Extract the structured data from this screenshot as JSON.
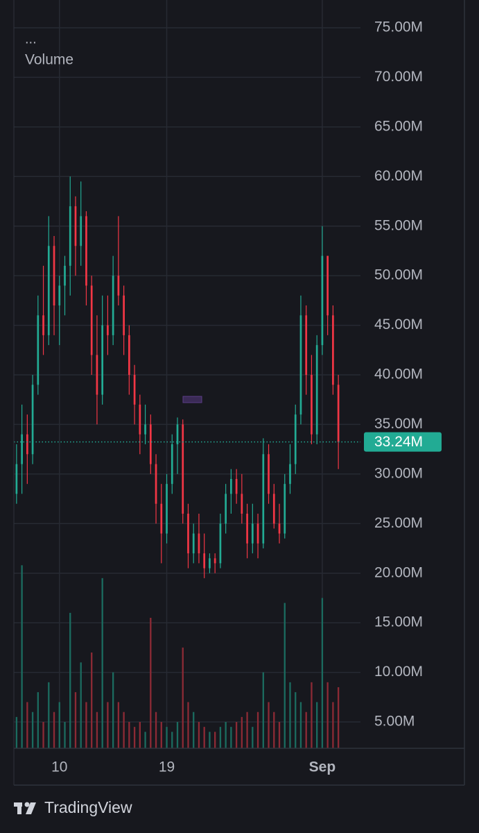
{
  "chart_data": {
    "type": "candlestick",
    "indicator_menu": "...",
    "volume_label": "Volume",
    "brand": "TradingView",
    "categories": [
      null,
      null,
      null,
      null,
      null,
      null,
      null,
      null,
      "10",
      null,
      null,
      null,
      null,
      null,
      null,
      null,
      null,
      null,
      null,
      null,
      null,
      null,
      null,
      null,
      null,
      null,
      null,
      null,
      "19",
      null,
      null,
      null,
      null,
      null,
      null,
      null,
      null,
      null,
      null,
      null,
      null,
      null,
      null,
      null,
      null,
      null,
      null,
      null,
      null,
      null,
      null,
      null,
      null,
      null,
      null,
      null,
      null,
      "Sep",
      null,
      null,
      null
    ],
    "open": [
      28,
      31,
      34,
      32,
      39,
      46,
      44,
      53,
      47,
      49,
      51,
      57,
      53,
      56,
      49,
      42,
      38,
      45,
      44,
      50,
      48,
      44,
      40,
      37,
      34,
      35,
      31,
      27,
      24,
      29,
      33,
      35,
      26,
      22,
      24,
      22,
      20.5,
      21.5,
      21,
      25,
      28,
      29.5,
      28,
      26,
      23,
      25,
      23,
      32,
      28,
      25,
      24,
      29,
      31,
      36,
      46,
      40,
      34,
      43,
      52,
      46,
      39
    ],
    "high": [
      33,
      37,
      36,
      40,
      48,
      51,
      56,
      54,
      50,
      52,
      60,
      58,
      59.5,
      56.5,
      50,
      46,
      48,
      48,
      52,
      56,
      49,
      45,
      41,
      38,
      37,
      36,
      32,
      29,
      30,
      34,
      35.7,
      35.5,
      27,
      25,
      26,
      24,
      22,
      22,
      26,
      29,
      30.5,
      30.5,
      30,
      27,
      27,
      26,
      33.6,
      33,
      29,
      27,
      30,
      33,
      37,
      48,
      47,
      42,
      44,
      55,
      52,
      47,
      40
    ],
    "low": [
      27,
      28,
      29,
      31,
      38,
      42,
      43,
      44,
      43,
      46,
      48,
      50,
      51,
      47,
      40,
      35,
      37,
      42,
      43,
      47,
      42,
      38,
      35,
      32,
      33,
      30,
      25,
      21,
      23,
      28,
      30,
      25,
      20.5,
      21,
      21,
      19.5,
      20,
      20,
      20.5,
      24,
      26,
      27,
      25,
      21.5,
      22,
      21.5,
      22.5,
      27,
      24.5,
      23,
      23.5,
      28,
      30,
      35,
      38,
      33,
      33,
      42,
      44,
      38,
      30.5
    ],
    "close": [
      31,
      34,
      32,
      39,
      46,
      44,
      53,
      47,
      49,
      51,
      57,
      53,
      56,
      49,
      42,
      38,
      45,
      44,
      50,
      48,
      44,
      40,
      37,
      34,
      35,
      31,
      27,
      24,
      29,
      33,
      35,
      26,
      22,
      24,
      22,
      20.5,
      21.5,
      21,
      25,
      28,
      29.5,
      28,
      26,
      23,
      25,
      23,
      32,
      28,
      25,
      24,
      29,
      31,
      36,
      46,
      40,
      34,
      43,
      52,
      46,
      39,
      33.24
    ],
    "volume": [
      5.5,
      20.8,
      7,
      6,
      8,
      5,
      9,
      6,
      7,
      5,
      16,
      8,
      11,
      7,
      12,
      6,
      19.5,
      7,
      10,
      7,
      6,
      5,
      4.5,
      5,
      4,
      15.5,
      6,
      5,
      4.5,
      4,
      5,
      12.5,
      7,
      6,
      5,
      4.5,
      4,
      4,
      4.5,
      5,
      4.5,
      5,
      5.5,
      6,
      4.5,
      6,
      10,
      7,
      6,
      5,
      17,
      9,
      8,
      7,
      6,
      9,
      7,
      17.5,
      9,
      7,
      8.5
    ],
    "up_color": "#22ab94",
    "down_color": "#f23645",
    "volume_up_color": "#1b6b5f",
    "volume_down_color": "#8c2a35",
    "last_price": {
      "value": 33.24,
      "label": "33.24M"
    },
    "ylim": [
      2.34,
      77.8
    ],
    "yticks": [
      {
        "value": 5,
        "label": "5.00M"
      },
      {
        "value": 10,
        "label": "10.00M"
      },
      {
        "value": 15,
        "label": "15.00M"
      },
      {
        "value": 20,
        "label": "20.00M"
      },
      {
        "value": 25,
        "label": "25.00M"
      },
      {
        "value": 30,
        "label": "30.00M"
      },
      {
        "value": 35,
        "label": "35.00M"
      },
      {
        "value": 40,
        "label": "40.00M"
      },
      {
        "value": 45,
        "label": "45.00M"
      },
      {
        "value": 50,
        "label": "50.00M"
      },
      {
        "value": 55,
        "label": "55.00M"
      },
      {
        "value": 60,
        "label": "60.00M"
      },
      {
        "value": 65,
        "label": "65.00M"
      },
      {
        "value": 70,
        "label": "70.00M"
      },
      {
        "value": 75,
        "label": "75.00M"
      }
    ],
    "grid": true
  }
}
